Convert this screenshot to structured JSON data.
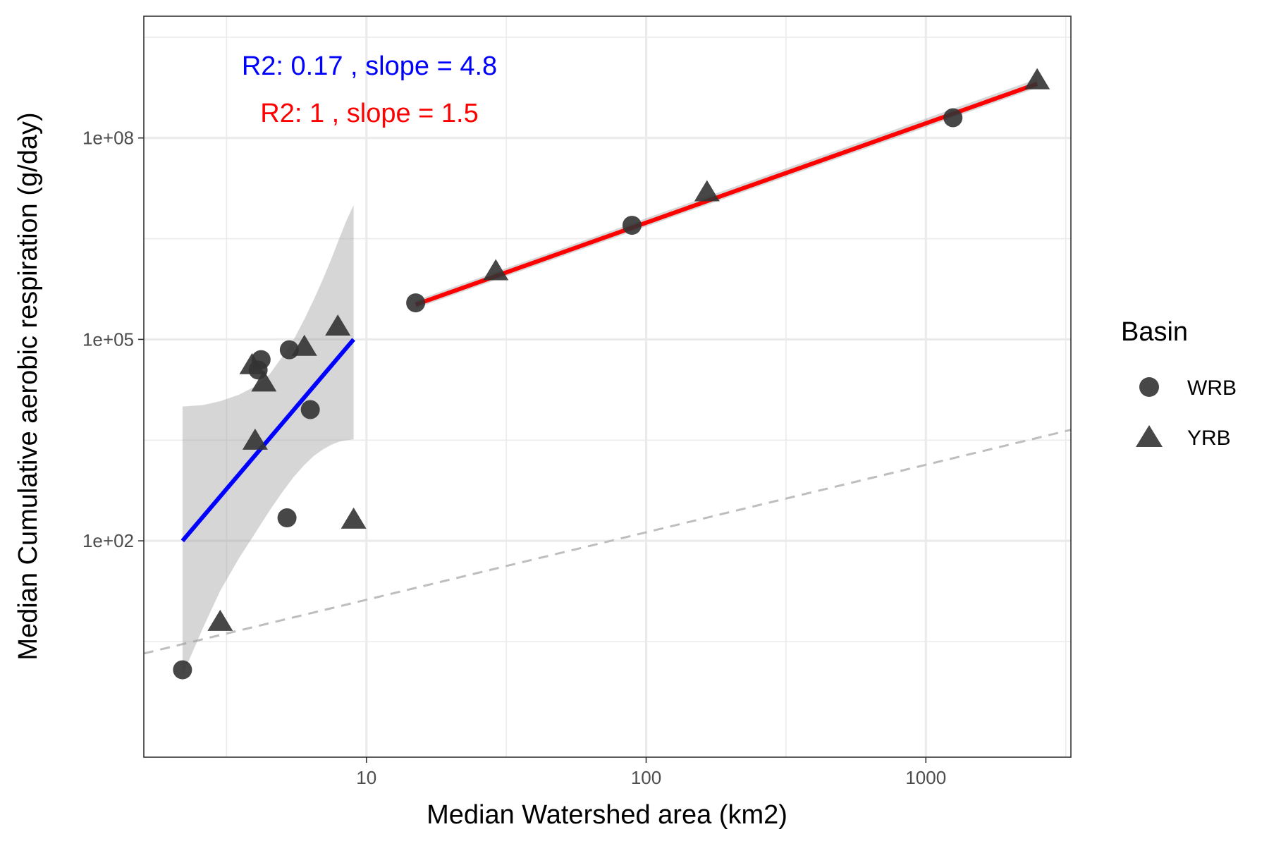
{
  "chart_data": {
    "type": "scatter",
    "xlabel": "Median Watershed area (km2)",
    "ylabel": "Median Cumulative aerobic respiration (g/day)",
    "x_scale": "log10",
    "y_scale": "log10",
    "xlim": [
      1.6,
      3300
    ],
    "ylim": [
      0.06,
      6500000000
    ],
    "x_ticks": [
      10,
      100,
      1000
    ],
    "x_tick_labels": [
      "10",
      "100",
      "1000"
    ],
    "y_ticks": [
      100,
      100000,
      100000000
    ],
    "y_tick_labels": [
      "1e+02",
      "1e+05",
      "1e+08"
    ],
    "grid": true,
    "legend": {
      "title": "Basin",
      "position": "right",
      "entries": [
        {
          "label": "WRB",
          "shape": "circle"
        },
        {
          "label": "YRB",
          "shape": "triangle"
        }
      ]
    },
    "series": [
      {
        "name": "WRB",
        "shape": "circle",
        "color": "#333333",
        "points": [
          {
            "x": 2.2,
            "y": 1.2
          },
          {
            "x": 4.1,
            "y": 35000
          },
          {
            "x": 4.2,
            "y": 50000
          },
          {
            "x": 5.3,
            "y": 70000
          },
          {
            "x": 5.2,
            "y": 220
          },
          {
            "x": 6.3,
            "y": 9000
          },
          {
            "x": 15,
            "y": 350000
          },
          {
            "x": 89,
            "y": 5000000
          },
          {
            "x": 1250,
            "y": 200000000
          }
        ]
      },
      {
        "name": "YRB",
        "shape": "triangle",
        "color": "#333333",
        "points": [
          {
            "x": 3.0,
            "y": 6
          },
          {
            "x": 3.9,
            "y": 40000
          },
          {
            "x": 4.0,
            "y": 3000
          },
          {
            "x": 4.3,
            "y": 22000
          },
          {
            "x": 6.0,
            "y": 75000
          },
          {
            "x": 7.9,
            "y": 150000
          },
          {
            "x": 9.0,
            "y": 200
          },
          {
            "x": 29,
            "y": 1000000
          },
          {
            "x": 165,
            "y": 15000000
          },
          {
            "x": 2500,
            "y": 700000000
          }
        ]
      }
    ],
    "fits": [
      {
        "color": "#0000ff",
        "from": [
          2.2,
          100
        ],
        "to": [
          9.0,
          100000
        ],
        "band": {
          "x": [
            2.2,
            2.6,
            3.0,
            3.5,
            4.0,
            4.5,
            5.0,
            5.5,
            6.0,
            6.5,
            7.0,
            7.5,
            8.0,
            8.5,
            9.0
          ],
          "upper": [
            10000,
            10500,
            12000,
            15000,
            20000,
            30000,
            55000,
            100000,
            200000,
            400000,
            800000,
            1600000,
            3200000,
            6000000,
            10000000
          ],
          "lower": [
            1,
            5,
            18,
            55,
            130,
            280,
            530,
            900,
            1350,
            1850,
            2300,
            2700,
            3000,
            3150,
            3250
          ]
        }
      },
      {
        "color": "#ff0000",
        "from": [
          15,
          330000
        ],
        "to": [
          2500,
          640000000
        ],
        "band": {
          "x": [
            15,
            2500
          ],
          "upper": [
            380000,
            760000000
          ],
          "lower": [
            290000,
            560000000
          ]
        }
      }
    ],
    "reference_line": {
      "color": "#bebebe",
      "style": "dashed",
      "from": [
        1.6,
        2.1
      ],
      "to": [
        3300,
        4500
      ]
    },
    "annotations": [
      {
        "text": "R2: 0.17 , slope = 4.8",
        "color": "#0000ff"
      },
      {
        "text": "R2: 1 , slope = 1.5",
        "color": "#ff0000"
      }
    ]
  }
}
